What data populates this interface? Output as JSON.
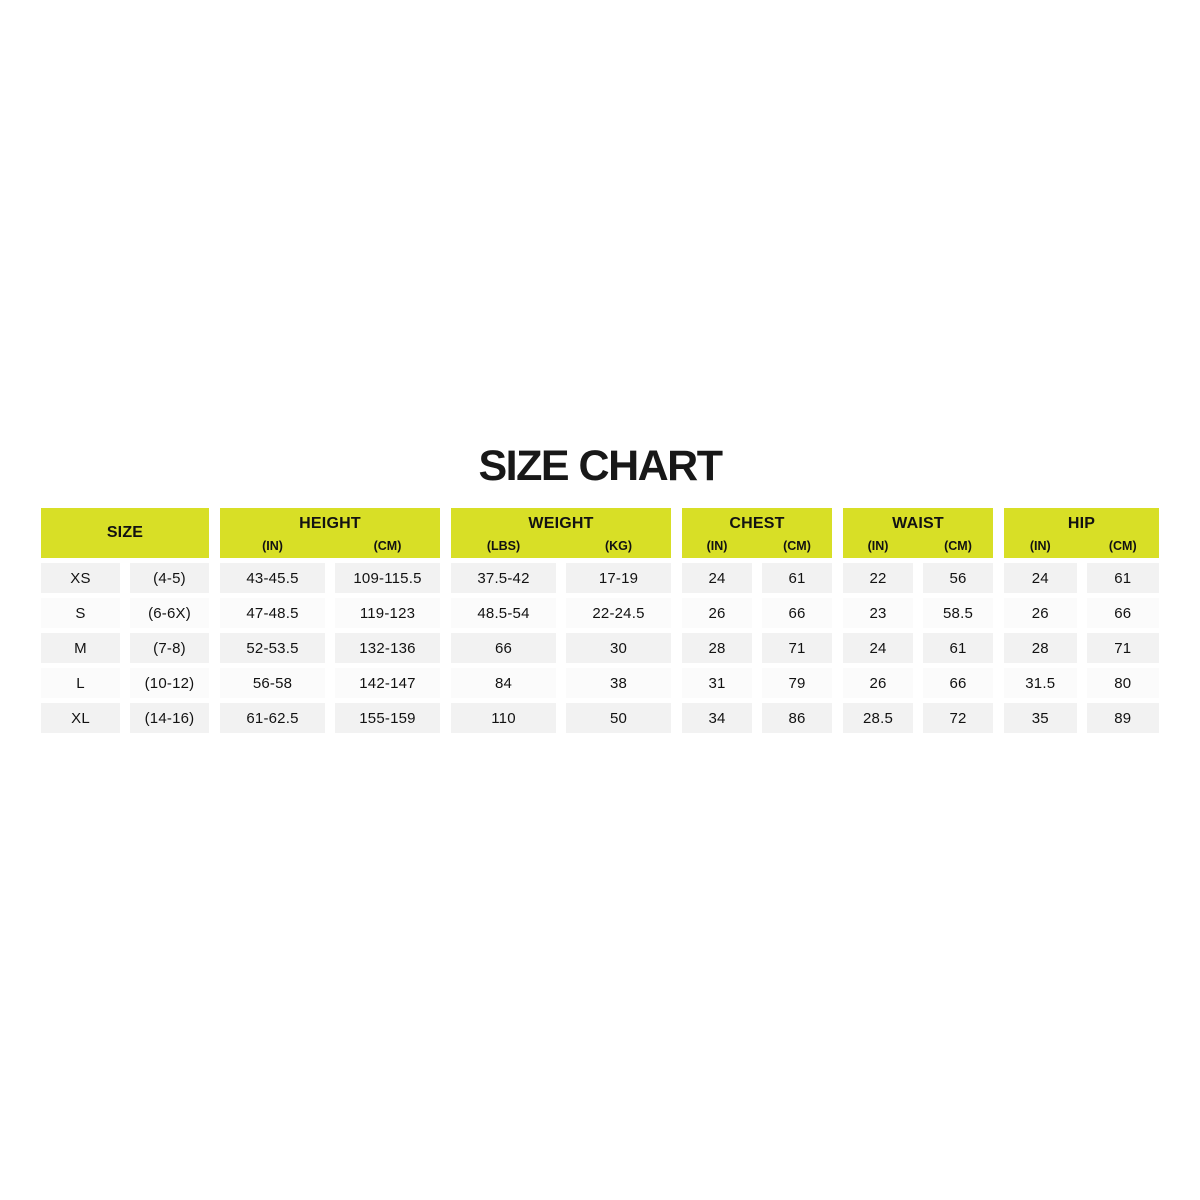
{
  "title": "SIZE CHART",
  "colors": {
    "header_bg": "#d8df26",
    "row_odd_bg": "#f2f2f2",
    "row_even_bg": "#fbfbfb",
    "text": "#121212",
    "page_bg": "#ffffff"
  },
  "table": {
    "groups": [
      {
        "label": "SIZE",
        "sublabels": []
      },
      {
        "label": "HEIGHT",
        "sublabels": [
          "(IN)",
          "(CM)"
        ]
      },
      {
        "label": "WEIGHT",
        "sublabels": [
          "(LBS)",
          "(KG)"
        ]
      },
      {
        "label": "CHEST",
        "sublabels": [
          "(IN)",
          "(CM)"
        ]
      },
      {
        "label": "WAIST",
        "sublabels": [
          "(IN)",
          "(CM)"
        ]
      },
      {
        "label": "HIP",
        "sublabels": [
          "(IN)",
          "(CM)"
        ]
      }
    ],
    "rows": [
      [
        "XS",
        "(4-5)",
        "43-45.5",
        "109-115.5",
        "37.5-42",
        "17-19",
        "24",
        "61",
        "22",
        "56",
        "24",
        "61"
      ],
      [
        "S",
        "(6-6X)",
        "47-48.5",
        "119-123",
        "48.5-54",
        "22-24.5",
        "26",
        "66",
        "23",
        "58.5",
        "26",
        "66"
      ],
      [
        "M",
        "(7-8)",
        "52-53.5",
        "132-136",
        "66",
        "30",
        "28",
        "71",
        "24",
        "61",
        "28",
        "71"
      ],
      [
        "L",
        "(10-12)",
        "56-58",
        "142-147",
        "84",
        "38",
        "31",
        "79",
        "26",
        "66",
        "31.5",
        "80"
      ],
      [
        "XL",
        "(14-16)",
        "61-62.5",
        "155-159",
        "110",
        "50",
        "34",
        "86",
        "28.5",
        "72",
        "35",
        "89"
      ]
    ]
  }
}
